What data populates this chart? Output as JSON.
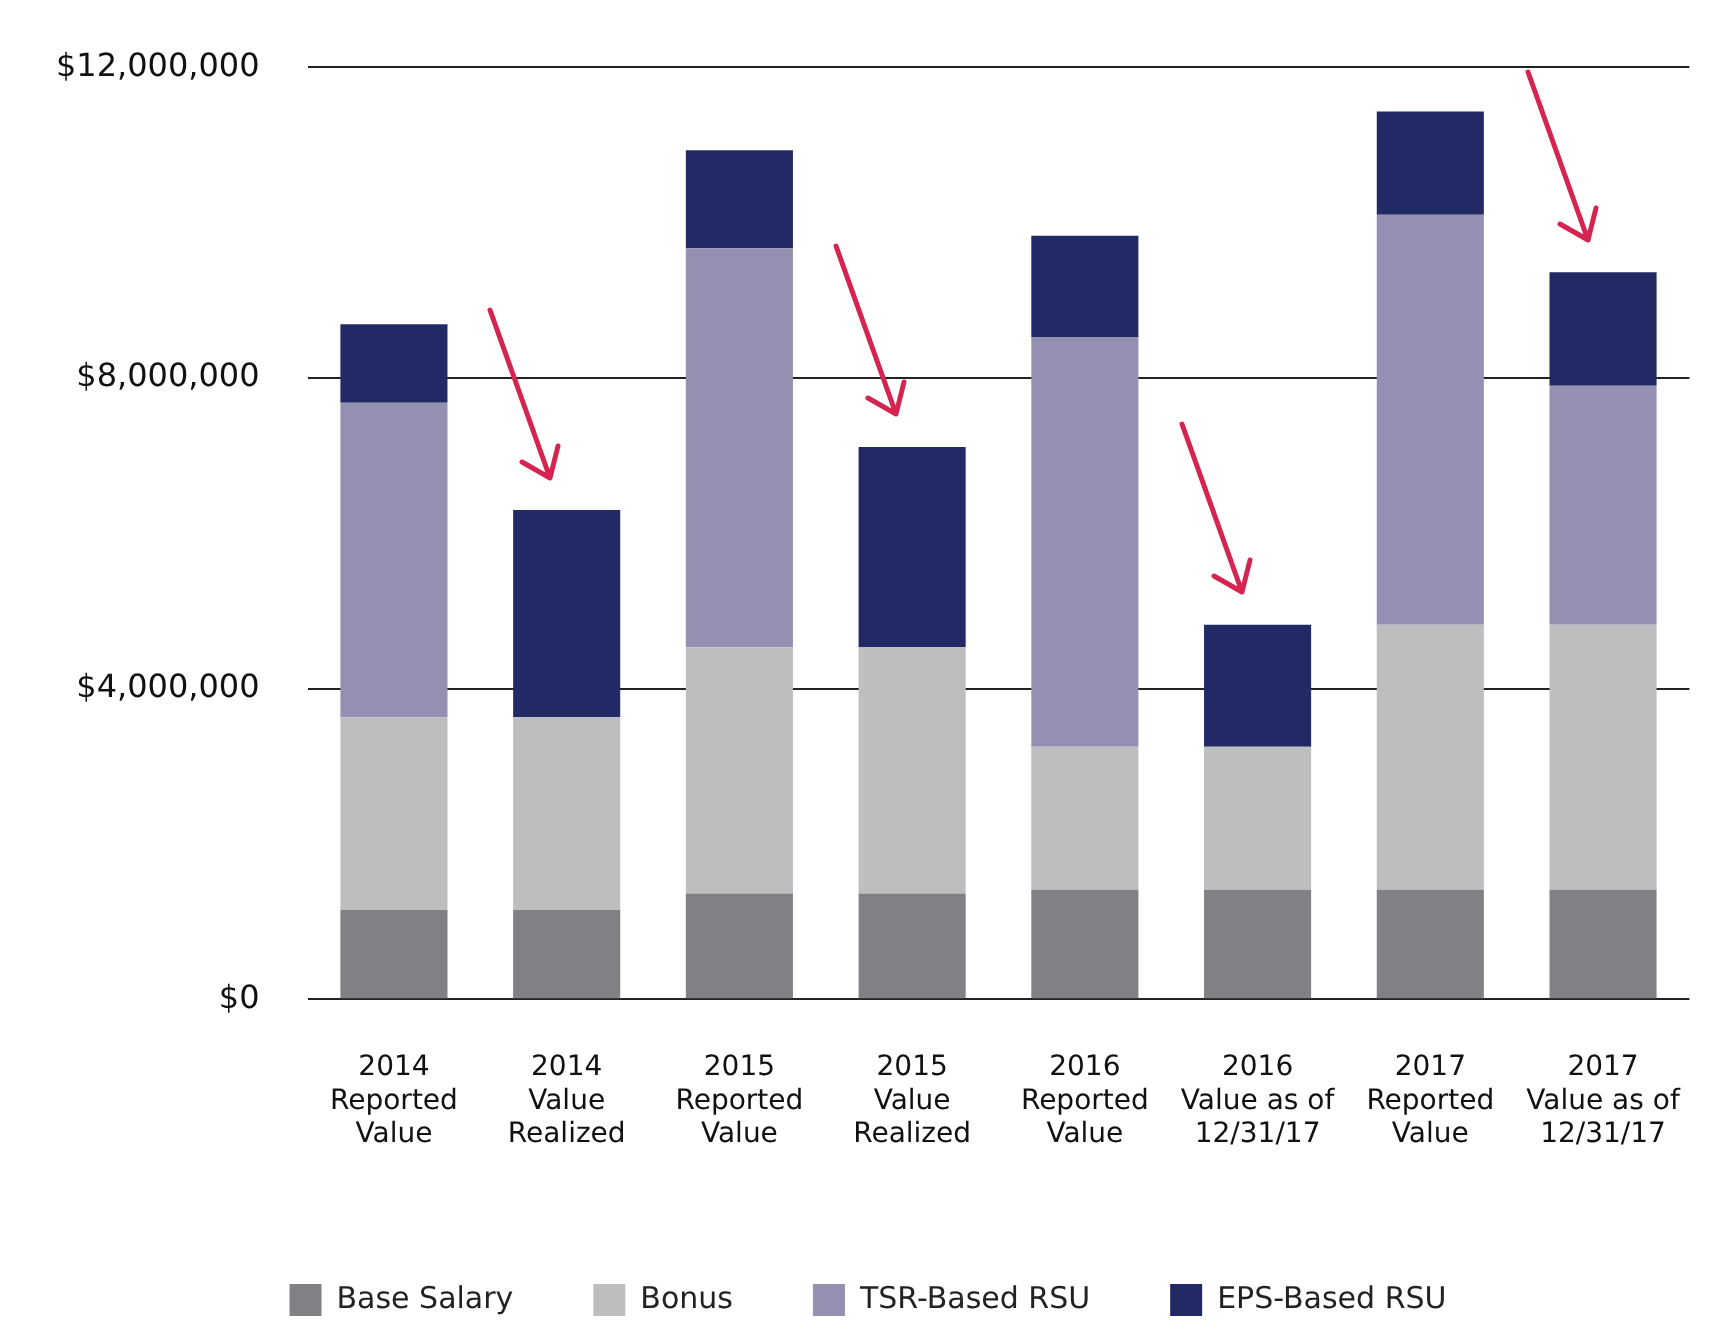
{
  "chart_data": {
    "type": "bar",
    "stacked": true,
    "categories": [
      "2014\nReported\nValue",
      "2014\nValue\nRealized",
      "2015\nReported\nValue",
      "2015\nValue\nRealized",
      "2016\nReported\nValue",
      "2016\nValue as of\n12/31/17",
      "2017\nReported\nValue",
      "2017\nValue as of\n12/31/17"
    ],
    "series": [
      {
        "name": "Base Salary",
        "color": "#808184",
        "values": [
          1150000,
          1150000,
          1360000,
          1360000,
          1410000,
          1410000,
          1410000,
          1410000
        ]
      },
      {
        "name": "Bonus",
        "color": "#bdbec0",
        "values": [
          2480000,
          2480000,
          3170000,
          3170000,
          1840000,
          1840000,
          3410000,
          3410000
        ]
      },
      {
        "name": "TSR-Based RSU",
        "color": "#9390b2",
        "values": [
          4050000,
          0,
          5140000,
          0,
          5270000,
          0,
          5280000,
          3080000
        ]
      },
      {
        "name": "EPS-Based RSU",
        "color": "#222a66",
        "values": [
          1010000,
          2670000,
          1260000,
          2580000,
          1310000,
          1570000,
          1330000,
          1460000
        ]
      }
    ],
    "ylim": [
      0,
      12000000
    ],
    "yticks": [
      {
        "value": 0,
        "label": "$0"
      },
      {
        "value": 4000000,
        "label": "$4,000,000"
      },
      {
        "value": 8000000,
        "label": "$8,000,000"
      },
      {
        "value": 12000000,
        "label": "$12,000,000"
      }
    ],
    "grid": "y",
    "legend": "bottom"
  }
}
